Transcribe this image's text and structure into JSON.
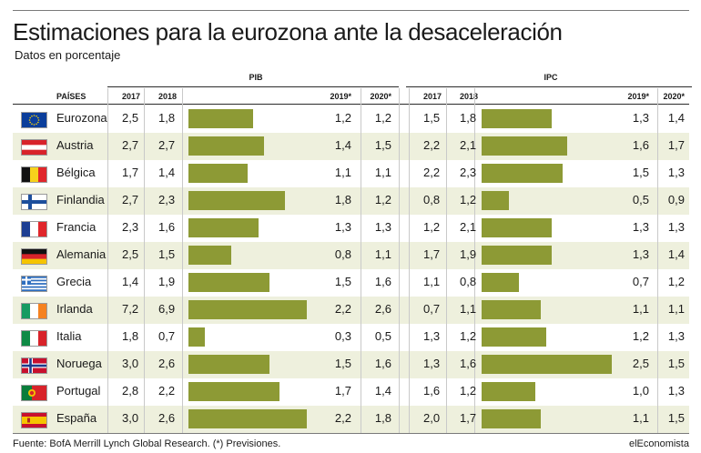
{
  "title": "Estimaciones para la eurozona ante la desaceleración",
  "subtitle": "Datos en porcentaje",
  "footer": {
    "source": "Fuente: BofA Merrill Lynch Global Research. (*) Previsiones.",
    "brand": "elEconomista"
  },
  "colors": {
    "bar": "#8d9a35",
    "row_shade": "#eef0dd",
    "text": "#1a1a1a"
  },
  "chart_data": {
    "type": "table",
    "groups": [
      "PIB",
      "IPC"
    ],
    "columns": [
      "PAÍSES",
      "2017",
      "2018",
      "2019*",
      "2020*"
    ],
    "bar_column": "2019*",
    "rows": [
      {
        "country": "Eurozona",
        "flag": "eu-flag-icon",
        "pib": [
          "2,5",
          "1,8",
          "1,2",
          "1,2"
        ],
        "ipc": [
          "1,5",
          "1,8",
          "1,3",
          "1,4"
        ]
      },
      {
        "country": "Austria",
        "flag": "austria-flag-icon",
        "pib": [
          "2,7",
          "2,7",
          "1,4",
          "1,5"
        ],
        "ipc": [
          "2,2",
          "2,1",
          "1,6",
          "1,7"
        ]
      },
      {
        "country": "Bélgica",
        "flag": "belgium-flag-icon",
        "pib": [
          "1,7",
          "1,4",
          "1,1",
          "1,1"
        ],
        "ipc": [
          "2,2",
          "2,3",
          "1,5",
          "1,3"
        ]
      },
      {
        "country": "Finlandia",
        "flag": "finland-flag-icon",
        "pib": [
          "2,7",
          "2,3",
          "1,8",
          "1,2"
        ],
        "ipc": [
          "0,8",
          "1,2",
          "0,5",
          "0,9"
        ]
      },
      {
        "country": "Francia",
        "flag": "france-flag-icon",
        "pib": [
          "2,3",
          "1,6",
          "1,3",
          "1,3"
        ],
        "ipc": [
          "1,2",
          "2,1",
          "1,3",
          "1,3"
        ]
      },
      {
        "country": "Alemania",
        "flag": "germany-flag-icon",
        "pib": [
          "2,5",
          "1,5",
          "0,8",
          "1,1"
        ],
        "ipc": [
          "1,7",
          "1,9",
          "1,3",
          "1,4"
        ]
      },
      {
        "country": "Grecia",
        "flag": "greece-flag-icon",
        "pib": [
          "1,4",
          "1,9",
          "1,5",
          "1,6"
        ],
        "ipc": [
          "1,1",
          "0,8",
          "0,7",
          "1,2"
        ]
      },
      {
        "country": "Irlanda",
        "flag": "ireland-flag-icon",
        "pib": [
          "7,2",
          "6,9",
          "2,2",
          "2,6"
        ],
        "ipc": [
          "0,7",
          "1,1",
          "1,1",
          "1,1"
        ]
      },
      {
        "country": "Italia",
        "flag": "italy-flag-icon",
        "pib": [
          "1,8",
          "0,7",
          "0,3",
          "0,5"
        ],
        "ipc": [
          "1,3",
          "1,2",
          "1,2",
          "1,3"
        ]
      },
      {
        "country": "Noruega",
        "flag": "norway-flag-icon",
        "pib": [
          "3,0",
          "2,6",
          "1,5",
          "1,6"
        ],
        "ipc": [
          "1,3",
          "1,6",
          "2,5",
          "1,5"
        ]
      },
      {
        "country": "Portugal",
        "flag": "portugal-flag-icon",
        "pib": [
          "2,8",
          "2,2",
          "1,7",
          "1,4"
        ],
        "ipc": [
          "1,6",
          "1,2",
          "1,0",
          "1,3"
        ]
      },
      {
        "country": "España",
        "flag": "spain-flag-icon",
        "pib": [
          "3,0",
          "2,6",
          "2,2",
          "1,8"
        ],
        "ipc": [
          "2,0",
          "1,7",
          "1,1",
          "1,5"
        ]
      }
    ]
  }
}
